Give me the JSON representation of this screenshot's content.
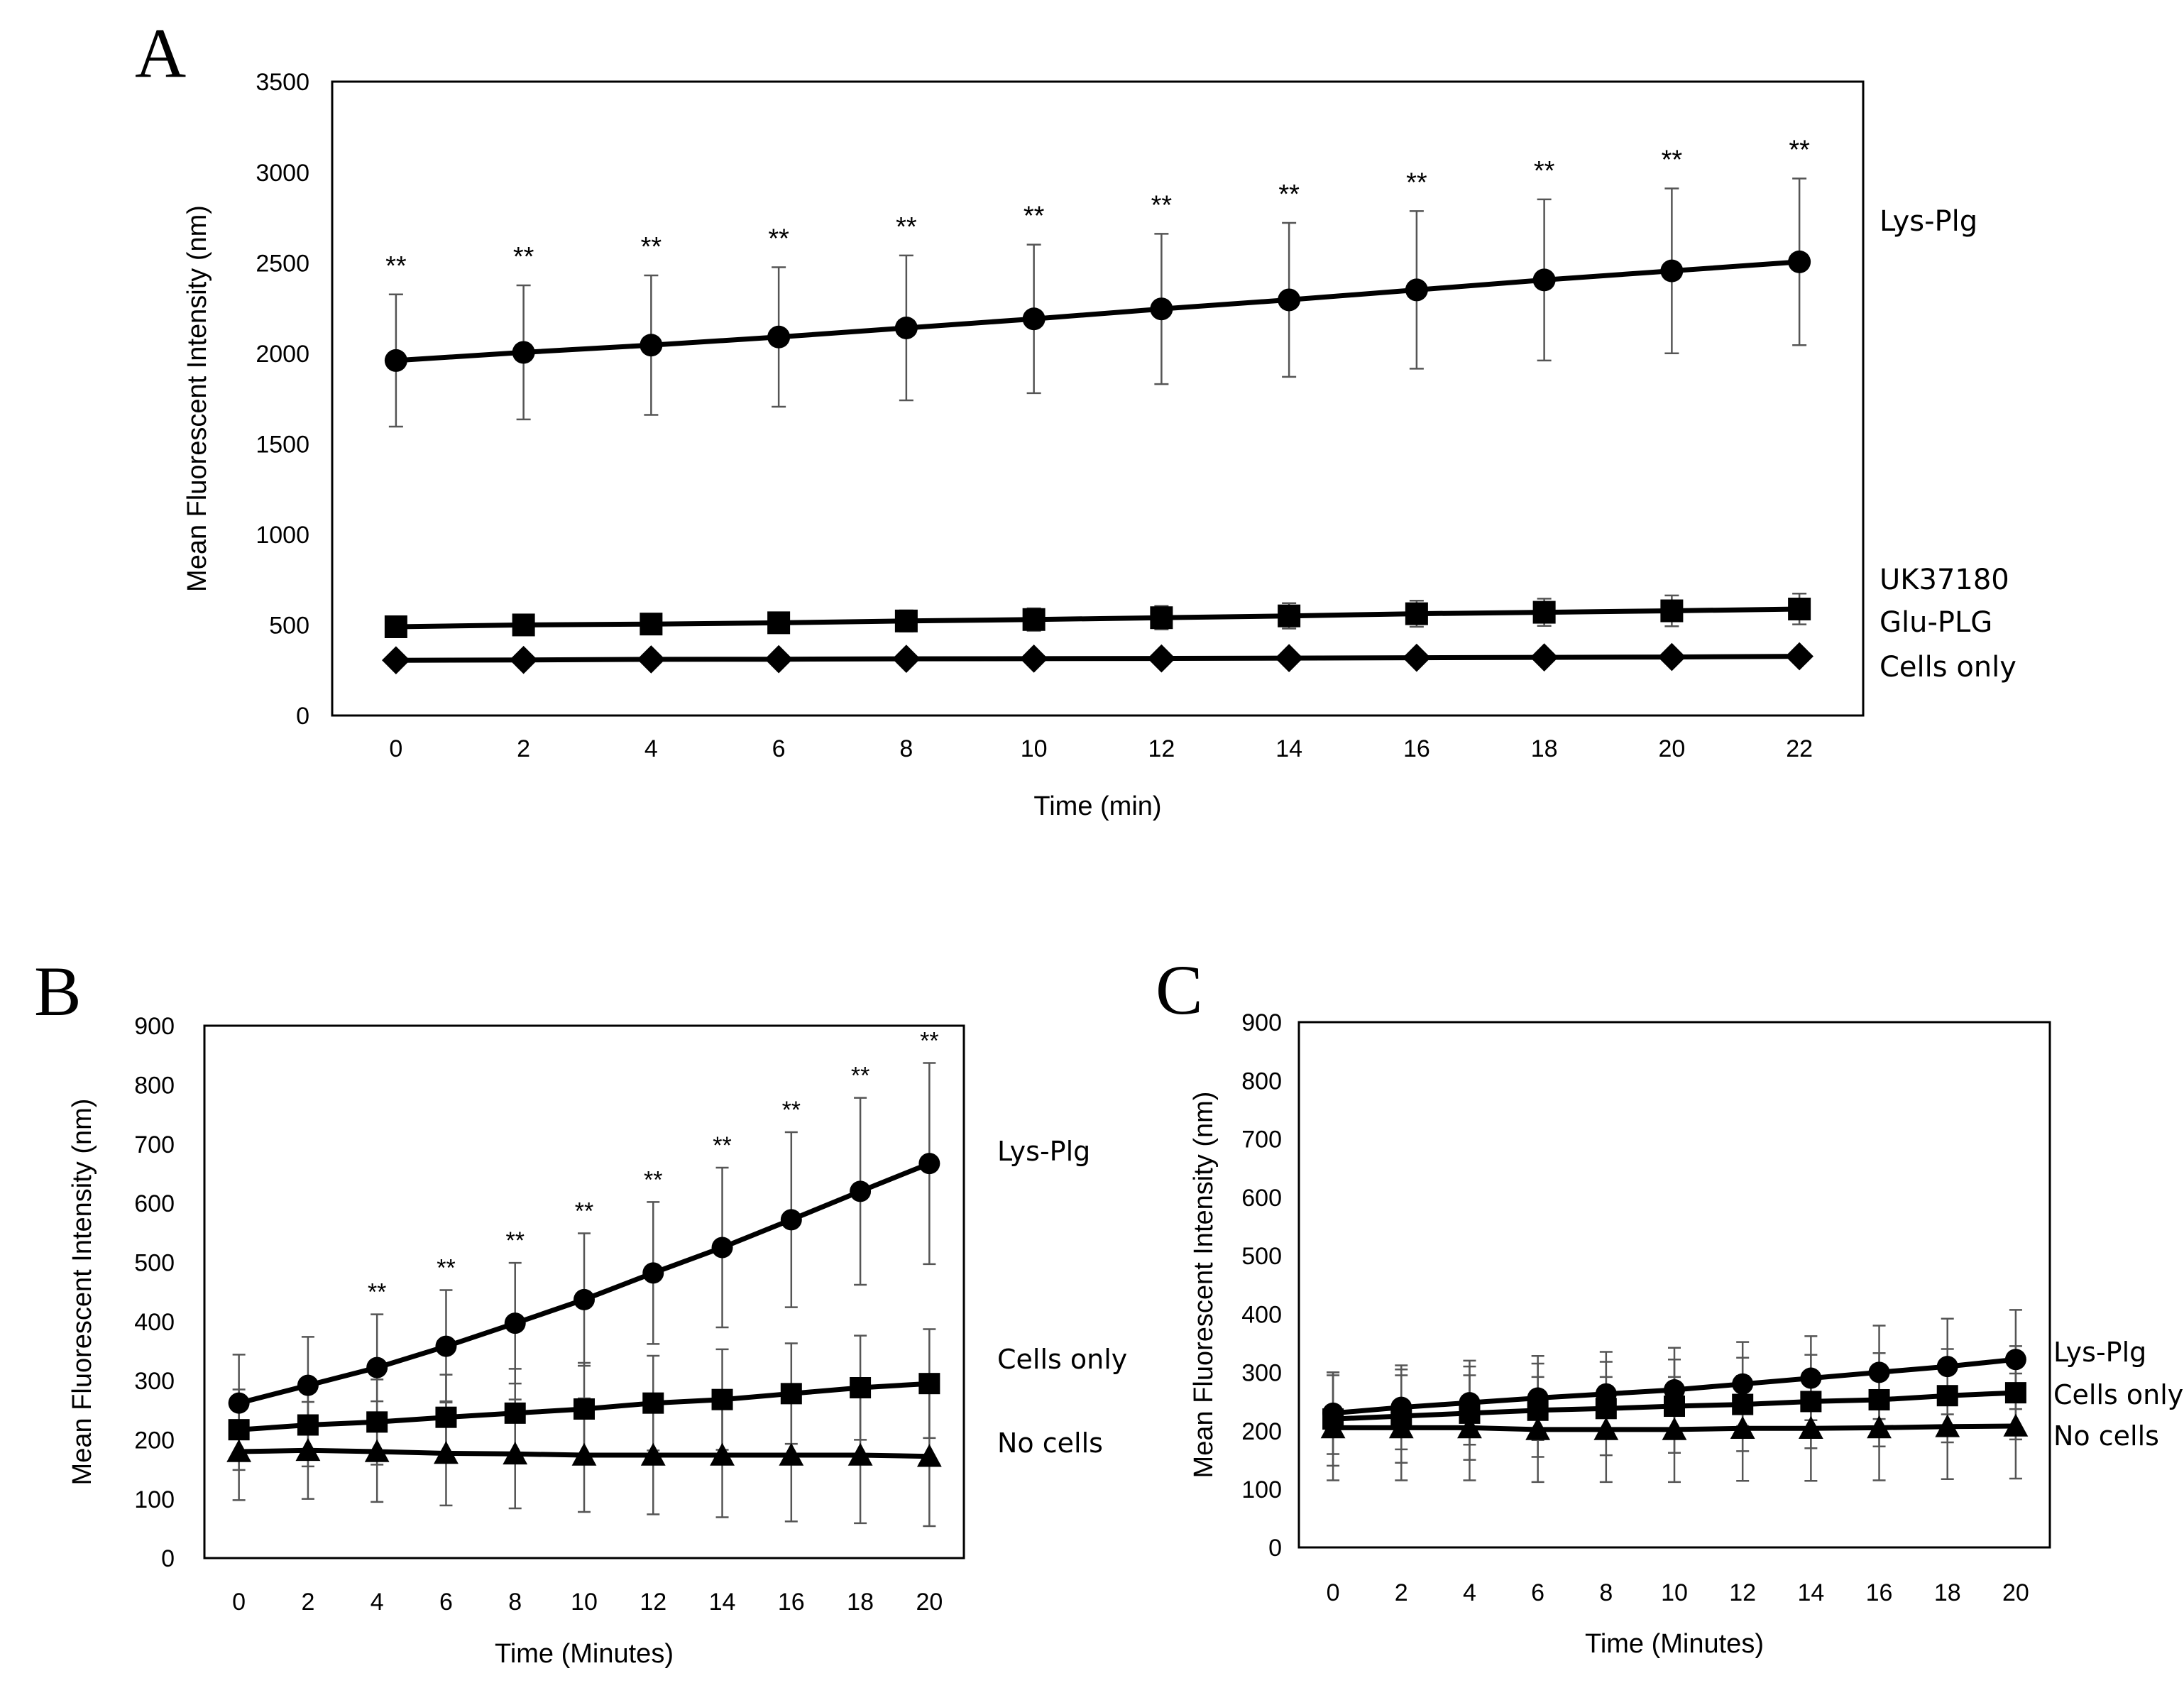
{
  "chart_data": [
    {
      "id": "A",
      "type": "line",
      "panel_label": "A",
      "title": "",
      "xlabel": "Time (min)",
      "ylabel": "Mean Fluorescent Intensity (nm)",
      "xlim": [
        -1,
        23
      ],
      "ylim": [
        0,
        3500
      ],
      "xticks": [
        0,
        2,
        4,
        6,
        8,
        10,
        12,
        14,
        16,
        18,
        20,
        22
      ],
      "yticks": [
        0,
        500,
        1000,
        1500,
        2000,
        2500,
        3000,
        3500
      ],
      "grid": false,
      "x": [
        0,
        2,
        4,
        6,
        8,
        10,
        12,
        14,
        16,
        18,
        20,
        22
      ],
      "significance": [
        "**",
        "**",
        "**",
        "**",
        "**",
        "**",
        "**",
        "**",
        "**",
        "**",
        "**",
        "**"
      ],
      "series": [
        {
          "name": "Lys-Plg",
          "marker": "circle",
          "values": [
            1960,
            2005,
            2045,
            2090,
            2140,
            2190,
            2245,
            2295,
            2350,
            2405,
            2455,
            2505
          ],
          "errors": [
            365,
            370,
            385,
            385,
            400,
            410,
            415,
            425,
            435,
            445,
            455,
            460
          ]
        },
        {
          "name": "UK37180",
          "marker": "square",
          "values": [
            490,
            500,
            505,
            512,
            522,
            530,
            540,
            550,
            562,
            570,
            578,
            588
          ],
          "errors": [
            50,
            52,
            55,
            55,
            58,
            62,
            65,
            70,
            72,
            75,
            85,
            85
          ]
        },
        {
          "name": "Glu-PLG",
          "marker": "none",
          "values": [
            310,
            312,
            314,
            315,
            316,
            317,
            318,
            320,
            322,
            324,
            326,
            330
          ],
          "errors": [
            0,
            0,
            0,
            0,
            0,
            0,
            0,
            0,
            0,
            0,
            0,
            0
          ]
        },
        {
          "name": "Cells only",
          "marker": "diamond",
          "values": [
            305,
            307,
            310,
            311,
            313,
            314,
            315,
            317,
            319,
            321,
            323,
            327
          ],
          "errors": [
            0,
            0,
            0,
            0,
            0,
            0,
            0,
            0,
            0,
            0,
            0,
            0
          ]
        }
      ]
    },
    {
      "id": "B",
      "type": "line",
      "panel_label": "B",
      "title": "",
      "xlabel": "Time (Minutes)",
      "ylabel": "Mean Fluorescent Intensity (nm)",
      "xlim": [
        -1,
        21
      ],
      "ylim": [
        0,
        900
      ],
      "xticks": [
        0,
        2,
        4,
        6,
        8,
        10,
        12,
        14,
        16,
        18,
        20
      ],
      "yticks": [
        0,
        100,
        200,
        300,
        400,
        500,
        600,
        700,
        800,
        900
      ],
      "grid": false,
      "x": [
        0,
        2,
        4,
        6,
        8,
        10,
        12,
        14,
        16,
        18,
        20
      ],
      "significance": [
        "",
        "",
        "**",
        "**",
        "**",
        "**",
        "**",
        "**",
        "**",
        "**",
        "**"
      ],
      "series": [
        {
          "name": "Lys-Plg",
          "marker": "circle",
          "values": [
            262,
            292,
            322,
            358,
            397,
            437,
            482,
            525,
            572,
            620,
            667
          ],
          "errors": [
            82,
            82,
            90,
            95,
            102,
            112,
            120,
            135,
            148,
            158,
            170
          ]
        },
        {
          "name": "Cells only",
          "marker": "square",
          "values": [
            217,
            225,
            230,
            238,
            245,
            252,
            262,
            268,
            278,
            288,
            295
          ],
          "errors": [
            68,
            70,
            72,
            72,
            75,
            78,
            80,
            85,
            85,
            88,
            92
          ]
        },
        {
          "name": "No cells",
          "marker": "triangle",
          "values": [
            180,
            182,
            180,
            177,
            176,
            174,
            174,
            174,
            174,
            174,
            172
          ],
          "errors": [
            82,
            82,
            85,
            88,
            92,
            96,
            100,
            105,
            112,
            115,
            118
          ]
        }
      ]
    },
    {
      "id": "C",
      "type": "line",
      "panel_label": "C",
      "title": "",
      "xlabel": "Time (Minutes)",
      "ylabel": "Mean Fluorescent Intensity (nm)",
      "xlim": [
        -1,
        21
      ],
      "ylim": [
        0,
        900
      ],
      "xticks": [
        0,
        2,
        4,
        6,
        8,
        10,
        12,
        14,
        16,
        18,
        20
      ],
      "yticks": [
        0,
        100,
        200,
        300,
        400,
        500,
        600,
        700,
        800,
        900
      ],
      "grid": false,
      "x": [
        0,
        2,
        4,
        6,
        8,
        10,
        12,
        14,
        16,
        18,
        20
      ],
      "significance": [
        "",
        "",
        "",
        "",
        "",
        "",
        "",
        "",
        "",
        "",
        ""
      ],
      "series": [
        {
          "name": "Lys-Plg",
          "marker": "circle",
          "values": [
            230,
            240,
            248,
            256,
            263,
            270,
            280,
            290,
            300,
            310,
            322
          ],
          "errors": [
            70,
            72,
            72,
            72,
            72,
            72,
            72,
            72,
            80,
            82,
            85
          ]
        },
        {
          "name": "Cells only",
          "marker": "square",
          "values": [
            220,
            225,
            230,
            235,
            238,
            242,
            245,
            250,
            253,
            260,
            265
          ],
          "errors": [
            80,
            80,
            80,
            80,
            80,
            80,
            80,
            80,
            80,
            80,
            80
          ]
        },
        {
          "name": "No cells",
          "marker": "triangle",
          "values": [
            205,
            205,
            205,
            202,
            202,
            202,
            204,
            204,
            205,
            207,
            208
          ],
          "errors": [
            90,
            90,
            90,
            90,
            90,
            90,
            90,
            90,
            90,
            90,
            90
          ]
        }
      ]
    }
  ]
}
